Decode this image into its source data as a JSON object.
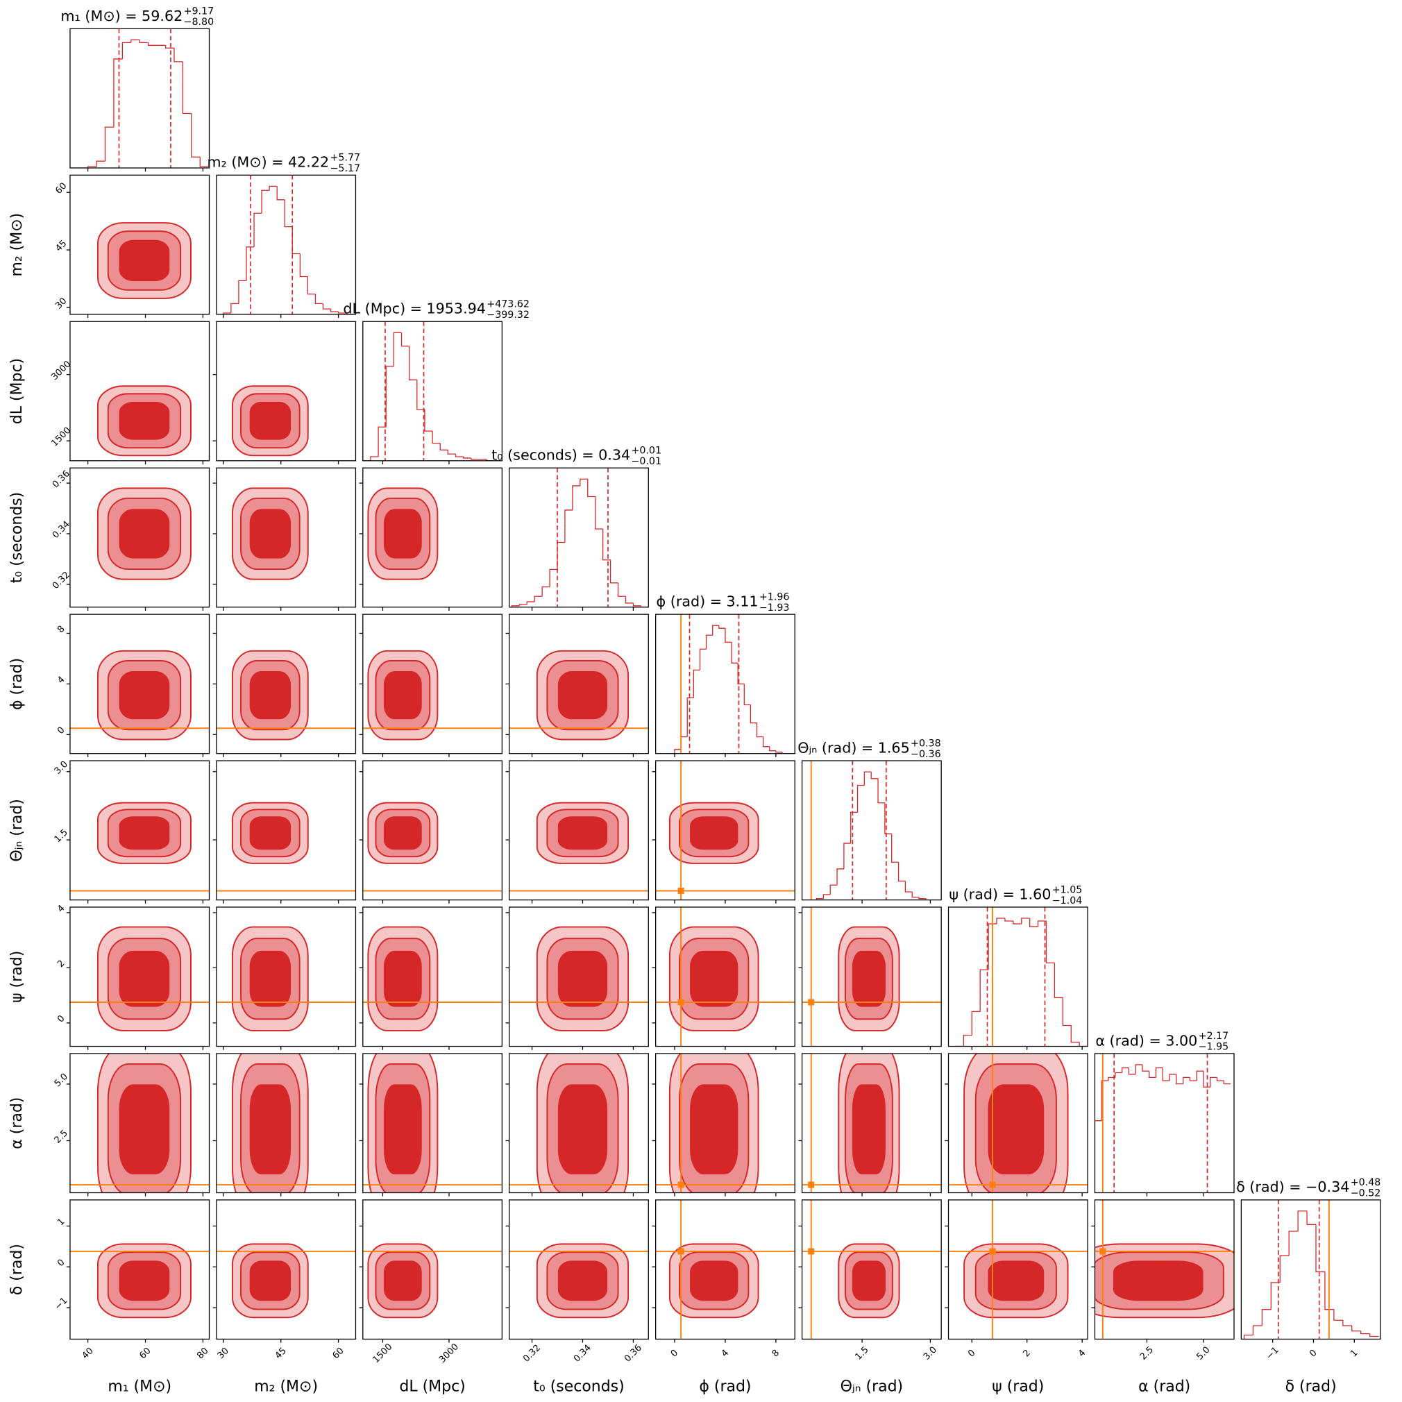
{
  "chart_data": {
    "type": "corner",
    "title_separator": "=",
    "color": "#d62728",
    "truth_color": "#ff7f0e",
    "params": [
      {
        "label": "m₁ (M⊙)",
        "median": 59.62,
        "upper": {
          "value": 9.17,
          "label": "+9.17"
        },
        "lower": {
          "value": 8.8,
          "label": "−8.80"
        },
        "lim": [
          33.8,
          82.2
        ],
        "ticks": [
          40,
          60,
          80
        ],
        "bins": [
          34,
          37,
          40,
          43,
          46,
          49,
          52,
          55,
          58,
          61,
          64,
          67,
          70,
          73,
          76,
          79,
          82
        ],
        "counts": [
          0,
          0,
          1,
          5,
          30,
          80,
          92,
          94,
          92,
          90,
          90,
          88,
          78,
          40,
          8,
          1
        ]
      },
      {
        "label": "m₂ (M⊙)",
        "median": 42.22,
        "upper": {
          "value": 5.77,
          "label": "+5.77"
        },
        "lower": {
          "value": 5.17,
          "label": "−5.17"
        },
        "lim": [
          28.2,
          64.5
        ],
        "ticks": [
          30,
          45,
          60
        ],
        "bins": [
          28,
          30,
          32,
          34,
          36,
          38,
          40,
          42,
          44,
          46,
          48,
          50,
          52,
          54,
          56,
          58,
          60,
          62,
          64
        ],
        "counts": [
          0,
          1,
          8,
          25,
          50,
          75,
          92,
          95,
          85,
          65,
          45,
          28,
          15,
          8,
          4,
          2,
          1,
          0
        ]
      },
      {
        "label": "dL (Mpc)",
        "median": 1953.94,
        "upper": {
          "value": 473.62,
          "label": "+473.62"
        },
        "lower": {
          "value": 399.32,
          "label": "−399.32"
        },
        "lim": [
          1050,
          4200
        ],
        "ticks": [
          1500,
          3000
        ],
        "bins": [
          1050,
          1225,
          1400,
          1575,
          1750,
          1925,
          2100,
          2275,
          2450,
          2625,
          2800,
          2975,
          3150,
          3325,
          3500,
          3675,
          3850,
          4025,
          4200
        ],
        "counts": [
          0,
          3,
          25,
          70,
          95,
          85,
          60,
          38,
          22,
          13,
          8,
          5,
          3,
          2,
          1,
          1,
          0,
          0
        ]
      },
      {
        "label": "t₀ (seconds)",
        "median": 0.34,
        "upper": {
          "value": 0.01,
          "label": "+0.01"
        },
        "lower": {
          "value": 0.01,
          "label": "−0.01"
        },
        "lim": [
          0.311,
          0.366
        ],
        "ticks": [
          0.32,
          0.34,
          0.36
        ],
        "bins": [
          0.312,
          0.315,
          0.318,
          0.321,
          0.324,
          0.327,
          0.33,
          0.333,
          0.336,
          0.339,
          0.342,
          0.345,
          0.348,
          0.351,
          0.354,
          0.357,
          0.36,
          0.363,
          0.366
        ],
        "counts": [
          1,
          2,
          4,
          8,
          15,
          28,
          48,
          72,
          90,
          95,
          82,
          58,
          35,
          18,
          8,
          3,
          1,
          0
        ]
      },
      {
        "label": "ϕ (rad)",
        "median": 3.11,
        "upper": {
          "value": 1.96,
          "label": "+1.96"
        },
        "lower": {
          "value": 1.93,
          "label": "−1.93"
        },
        "lim": [
          -1.5,
          9.5
        ],
        "ticks": [
          0,
          4,
          8
        ],
        "truth": 0.5,
        "bins": [
          -0.5,
          0,
          0.5,
          1,
          1.5,
          2,
          2.5,
          3,
          3.5,
          4,
          4.5,
          5,
          5.5,
          6,
          6.5,
          7,
          7.5,
          8,
          8.5,
          9,
          9.5
        ],
        "counts": [
          0,
          3,
          12,
          40,
          60,
          75,
          85,
          92,
          90,
          80,
          65,
          50,
          35,
          22,
          12,
          5,
          2,
          1,
          0,
          0
        ]
      },
      {
        "label": "Θⱼₙ (rad)",
        "median": 1.65,
        "upper": {
          "value": 0.38,
          "label": "+0.38"
        },
        "lower": {
          "value": 0.36,
          "label": "−0.36"
        },
        "lim": [
          0.18,
          3.24
        ],
        "ticks": [
          1.5,
          {
            "value": 3,
            "label": "3.0"
          }
        ],
        "truth": 0.38,
        "bins": [
          0.2,
          0.35,
          0.5,
          0.65,
          0.8,
          0.95,
          1.1,
          1.25,
          1.4,
          1.55,
          1.7,
          1.85,
          2.0,
          2.15,
          2.3,
          2.45,
          2.6,
          2.75,
          2.9,
          3.05,
          3.2
        ],
        "counts": [
          0,
          0,
          1,
          4,
          11,
          23,
          42,
          65,
          85,
          95,
          90,
          72,
          49,
          28,
          14,
          6,
          2,
          1,
          0,
          0
        ]
      },
      {
        "label": "ψ (rad)",
        "median": {
          "value": 1.6,
          "label": "1.60"
        },
        "upper": {
          "value": 1.05,
          "label": "+1.05"
        },
        "lower": {
          "value": 1.04,
          "label": "−1.04"
        },
        "lim": [
          -0.85,
          4.2
        ],
        "ticks": [
          0,
          2,
          4
        ],
        "truth": 0.75,
        "bins": [
          -0.6,
          -0.3,
          0,
          0.3,
          0.6,
          0.9,
          1.2,
          1.5,
          1.8,
          2.1,
          2.4,
          2.7,
          3.0,
          3.3,
          3.6,
          3.9,
          4.2
        ],
        "counts": [
          0,
          8,
          25,
          55,
          88,
          92,
          90,
          88,
          92,
          86,
          90,
          60,
          35,
          15,
          3,
          0
        ]
      },
      {
        "label": "α (rad)",
        "median": {
          "value": 3,
          "label": "3.00"
        },
        "upper": {
          "value": 2.17,
          "label": "+2.17"
        },
        "lower": {
          "value": 1.95,
          "label": "−1.95"
        },
        "lim": [
          0.2,
          6.35
        ],
        "ticks": [
          2.5,
          {
            "value": 5,
            "label": "5.0"
          }
        ],
        "truth": 0.55,
        "bins": [
          0.2,
          0.5,
          0.8,
          1.1,
          1.4,
          1.7,
          2.0,
          2.3,
          2.6,
          2.9,
          3.2,
          3.5,
          3.8,
          4.1,
          4.4,
          4.7,
          5.0,
          5.3,
          5.6,
          5.9,
          6.2
        ],
        "counts": [
          45,
          70,
          72,
          75,
          78,
          74,
          80,
          76,
          72,
          78,
          70,
          74,
          68,
          72,
          70,
          76,
          66,
          72,
          70,
          68
        ]
      },
      {
        "label": "δ (rad)",
        "median": {
          "value": -0.34,
          "label": "−0.34"
        },
        "upper": {
          "value": 0.48,
          "label": "+0.48"
        },
        "lower": {
          "value": 0.52,
          "label": "−0.52"
        },
        "lim": [
          -1.77,
          1.64
        ],
        "ticks": [
          {
            "value": -1,
            "label": "−1"
          },
          0,
          1
        ],
        "truth": 0.38,
        "bins": [
          -1.7,
          -1.48,
          -1.26,
          -1.04,
          -0.82,
          -0.6,
          -0.38,
          -0.16,
          0.06,
          0.28,
          0.5,
          0.72,
          0.94,
          1.16,
          1.38,
          1.6
        ],
        "counts": [
          3,
          10,
          22,
          42,
          62,
          80,
          95,
          85,
          50,
          22,
          14,
          10,
          6,
          4,
          2
        ]
      }
    ]
  }
}
